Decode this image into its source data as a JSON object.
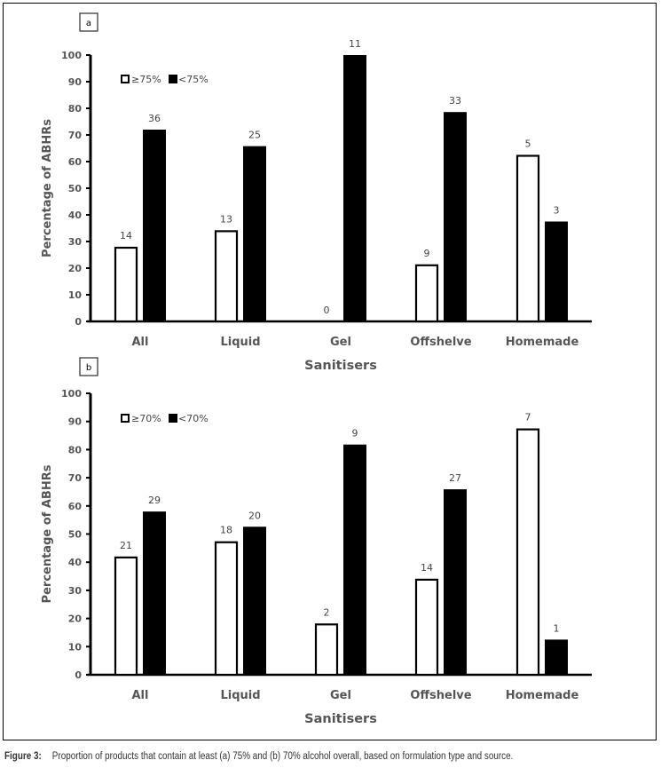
{
  "figure": {
    "caption_label": "Figure 3:",
    "caption_text": "Proportion of products that contain at least (a) 75% and (b) 70% alcohol overall, based on formulation type and source."
  },
  "colors": {
    "bar_fill_meets": "#ffffff",
    "bar_fill_below": "#000000",
    "axis": "#000000",
    "text": "#555555"
  },
  "chart_data": [
    {
      "type": "bar",
      "panel_label": "a",
      "title": "",
      "xlabel": "Sanitisers",
      "ylabel": "Percentage of ABHRs",
      "ylim": [
        0,
        100
      ],
      "yticks": [
        0,
        10,
        20,
        30,
        40,
        50,
        60,
        70,
        80,
        90,
        100
      ],
      "grid": false,
      "legend_position": "top-left",
      "categories": [
        "All",
        "Liquid",
        "Gel",
        "Offshelve",
        "Homemade"
      ],
      "series": [
        {
          "name": "≥75%",
          "fill": "white",
          "values": [
            28,
            34.2,
            0,
            21.4,
            62.5
          ],
          "data_labels": [
            "14",
            "13",
            "0",
            "9",
            "5"
          ]
        },
        {
          "name": "<75%",
          "fill": "black",
          "values": [
            72,
            65.8,
            100,
            78.6,
            37.5
          ],
          "data_labels": [
            "36",
            "25",
            "11",
            "33",
            "3"
          ]
        }
      ]
    },
    {
      "type": "bar",
      "panel_label": "b",
      "title": "",
      "xlabel": "Sanitisers",
      "ylabel": "Percentage of ABHRs",
      "ylim": [
        0,
        100
      ],
      "yticks": [
        0,
        10,
        20,
        30,
        40,
        50,
        60,
        70,
        80,
        90,
        100
      ],
      "grid": false,
      "legend_position": "top-left",
      "categories": [
        "All",
        "Liquid",
        "Gel",
        "Offshelve",
        "Homemade"
      ],
      "series": [
        {
          "name": "≥70%",
          "fill": "white",
          "values": [
            42,
            47.4,
            18.2,
            34.1,
            87.5
          ],
          "data_labels": [
            "21",
            "18",
            "2",
            "14",
            "7"
          ]
        },
        {
          "name": "<70%",
          "fill": "black",
          "values": [
            58,
            52.6,
            81.8,
            65.9,
            12.5
          ],
          "data_labels": [
            "29",
            "20",
            "9",
            "27",
            "1"
          ]
        }
      ]
    }
  ]
}
